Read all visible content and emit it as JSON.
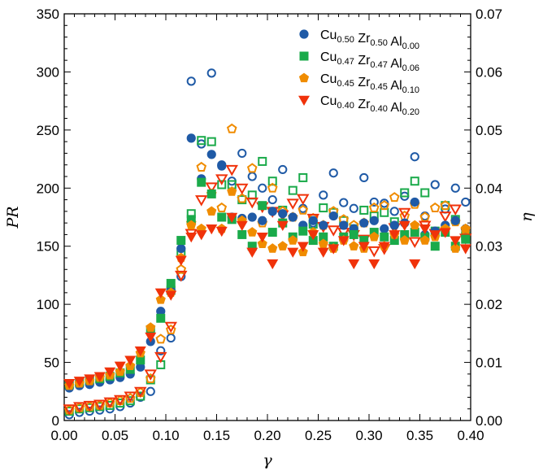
{
  "chart_data": {
    "type": "scatter",
    "xlabel": "γ",
    "ylabel": "PR",
    "y2label": "η",
    "xlim": [
      0.0,
      0.4
    ],
    "ylim": [
      0,
      350
    ],
    "y2lim": [
      0.0,
      0.07
    ],
    "xticks": [
      "0.00",
      "0.05",
      "0.10",
      "0.15",
      "0.20",
      "0.25",
      "0.30",
      "0.35",
      "0.40"
    ],
    "yticks": [
      "0",
      "50",
      "100",
      "150",
      "200",
      "250",
      "300",
      "350"
    ],
    "y2ticks": [
      "0.00",
      "0.01",
      "0.02",
      "0.03",
      "0.04",
      "0.05",
      "0.06",
      "0.07"
    ],
    "legend_position": "top-right",
    "x": [
      0.005,
      0.015,
      0.025,
      0.035,
      0.045,
      0.055,
      0.065,
      0.075,
      0.085,
      0.095,
      0.105,
      0.115,
      0.125,
      0.135,
      0.145,
      0.155,
      0.165,
      0.175,
      0.185,
      0.195,
      0.205,
      0.215,
      0.225,
      0.235,
      0.245,
      0.255,
      0.265,
      0.275,
      0.285,
      0.295,
      0.305,
      0.315,
      0.325,
      0.335,
      0.345,
      0.355,
      0.365,
      0.375,
      0.385,
      0.395
    ],
    "series": [
      {
        "name": "Cu0.50 Zr0.50 Al0.00",
        "legend": {
          "elements": [
            [
              "Cu",
              "0.50"
            ],
            [
              "Zr",
              "0.50"
            ],
            [
              "Al",
              "0.00"
            ]
          ]
        },
        "color": "#1f5aa6",
        "marker": "circle",
        "pr": [
          28,
          30,
          31,
          33,
          35,
          37,
          40,
          46,
          68,
          94,
          112,
          148,
          243,
          208,
          229,
          220,
          175,
          174,
          175,
          172,
          180,
          178,
          175,
          168,
          172,
          168,
          176,
          168,
          165,
          170,
          172,
          165,
          168,
          170,
          188,
          160,
          163,
          168,
          172,
          165
        ],
        "eta": [
          0.001,
          0.0014,
          0.0016,
          0.0018,
          0.002,
          0.0024,
          0.003,
          0.004,
          0.005,
          0.012,
          0.0142,
          0.0248,
          0.0584,
          0.0476,
          0.0598,
          0.0438,
          0.0412,
          0.046,
          0.042,
          0.04,
          0.038,
          0.0432,
          0.035,
          0.0365,
          0.034,
          0.0388,
          0.0426,
          0.0375,
          0.0365,
          0.0418,
          0.0376,
          0.0374,
          0.036,
          0.0386,
          0.0454,
          0.0352,
          0.0406,
          0.0364,
          0.04,
          0.0376
        ]
      },
      {
        "name": "Cu0.47 Zr0.47 Al0.06",
        "legend": {
          "elements": [
            [
              "Cu",
              "0.47"
            ],
            [
              "Zr",
              "0.47"
            ],
            [
              "Al",
              "0.06"
            ]
          ]
        },
        "color": "#1aaa4a",
        "marker": "square",
        "pr": [
          31,
          33,
          35,
          36,
          38,
          41,
          44,
          52,
          78,
          88,
          118,
          155,
          173,
          205,
          195,
          175,
          173,
          160,
          150,
          185,
          162,
          170,
          158,
          163,
          155,
          158,
          150,
          158,
          160,
          155,
          162,
          158,
          155,
          160,
          162,
          158,
          150,
          162,
          150,
          156
        ],
        "eta": [
          0.0016,
          0.002,
          0.0022,
          0.0024,
          0.0026,
          0.003,
          0.0034,
          0.0042,
          0.007,
          0.0096,
          0.0224,
          0.029,
          0.0356,
          0.0482,
          0.048,
          0.0406,
          0.0406,
          0.038,
          0.0388,
          0.0446,
          0.0412,
          0.0362,
          0.0396,
          0.0418,
          0.0338,
          0.0366,
          0.0358,
          0.0344,
          0.033,
          0.0362,
          0.0352,
          0.0358,
          0.0342,
          0.0392,
          0.0412,
          0.0392,
          0.0326,
          0.037,
          0.0346,
          0.0318
        ]
      },
      {
        "name": "Cu0.45 Zr0.45 Al0.10",
        "legend": {
          "elements": [
            [
              "Cu",
              "0.45"
            ],
            [
              "Zr",
              "0.45"
            ],
            [
              "Al",
              "0.10"
            ]
          ]
        },
        "color": "#f08c00",
        "marker": "pentagon",
        "pr": [
          30,
          32,
          34,
          37,
          39,
          42,
          47,
          58,
          80,
          104,
          110,
          140,
          168,
          165,
          180,
          165,
          197,
          172,
          162,
          152,
          148,
          150,
          155,
          145,
          162,
          152,
          148,
          155,
          150,
          148,
          158,
          150,
          160,
          155,
          168,
          155,
          158,
          165,
          148,
          165
        ],
        "eta": [
          0.0018,
          0.0022,
          0.0024,
          0.0026,
          0.003,
          0.0034,
          0.0038,
          0.0048,
          0.0072,
          0.014,
          0.0156,
          0.026,
          0.034,
          0.0436,
          0.039,
          0.0366,
          0.0502,
          0.0382,
          0.0434,
          0.034,
          0.04,
          0.036,
          0.035,
          0.0362,
          0.0348,
          0.0336,
          0.036,
          0.0346,
          0.0336,
          0.034,
          0.0366,
          0.037,
          0.0384,
          0.0352,
          0.0372,
          0.035,
          0.0366,
          0.037,
          0.0342,
          0.0328
        ]
      },
      {
        "name": "Cu0.40 Zr0.40 Al0.20",
        "legend": {
          "elements": [
            [
              "Cu",
              "0.40"
            ],
            [
              "Zr",
              "0.40"
            ],
            [
              "Al",
              "0.20"
            ]
          ]
        },
        "color": "#f0320a",
        "marker": "triangle-down",
        "pr": [
          32,
          34,
          36,
          38,
          42,
          47,
          52,
          60,
          72,
          110,
          108,
          138,
          158,
          160,
          165,
          163,
          175,
          168,
          145,
          158,
          135,
          168,
          145,
          150,
          160,
          145,
          148,
          155,
          135,
          150,
          135,
          150,
          160,
          168,
          135,
          165,
          160,
          162,
          155,
          148
        ],
        "eta": [
          0.002,
          0.0024,
          0.0026,
          0.0028,
          0.0032,
          0.0036,
          0.0042,
          0.005,
          0.008,
          0.011,
          0.0162,
          0.025,
          0.0322,
          0.038,
          0.0402,
          0.0416,
          0.0432,
          0.04,
          0.0376,
          0.0368,
          0.036,
          0.0354,
          0.0374,
          0.0382,
          0.0348,
          0.0334,
          0.0328,
          0.0324,
          0.032,
          0.0312,
          0.0292,
          0.0296,
          0.0332,
          0.0358,
          0.0308,
          0.0336,
          0.0322,
          0.0352,
          0.0364,
          0.0314
        ]
      }
    ]
  }
}
